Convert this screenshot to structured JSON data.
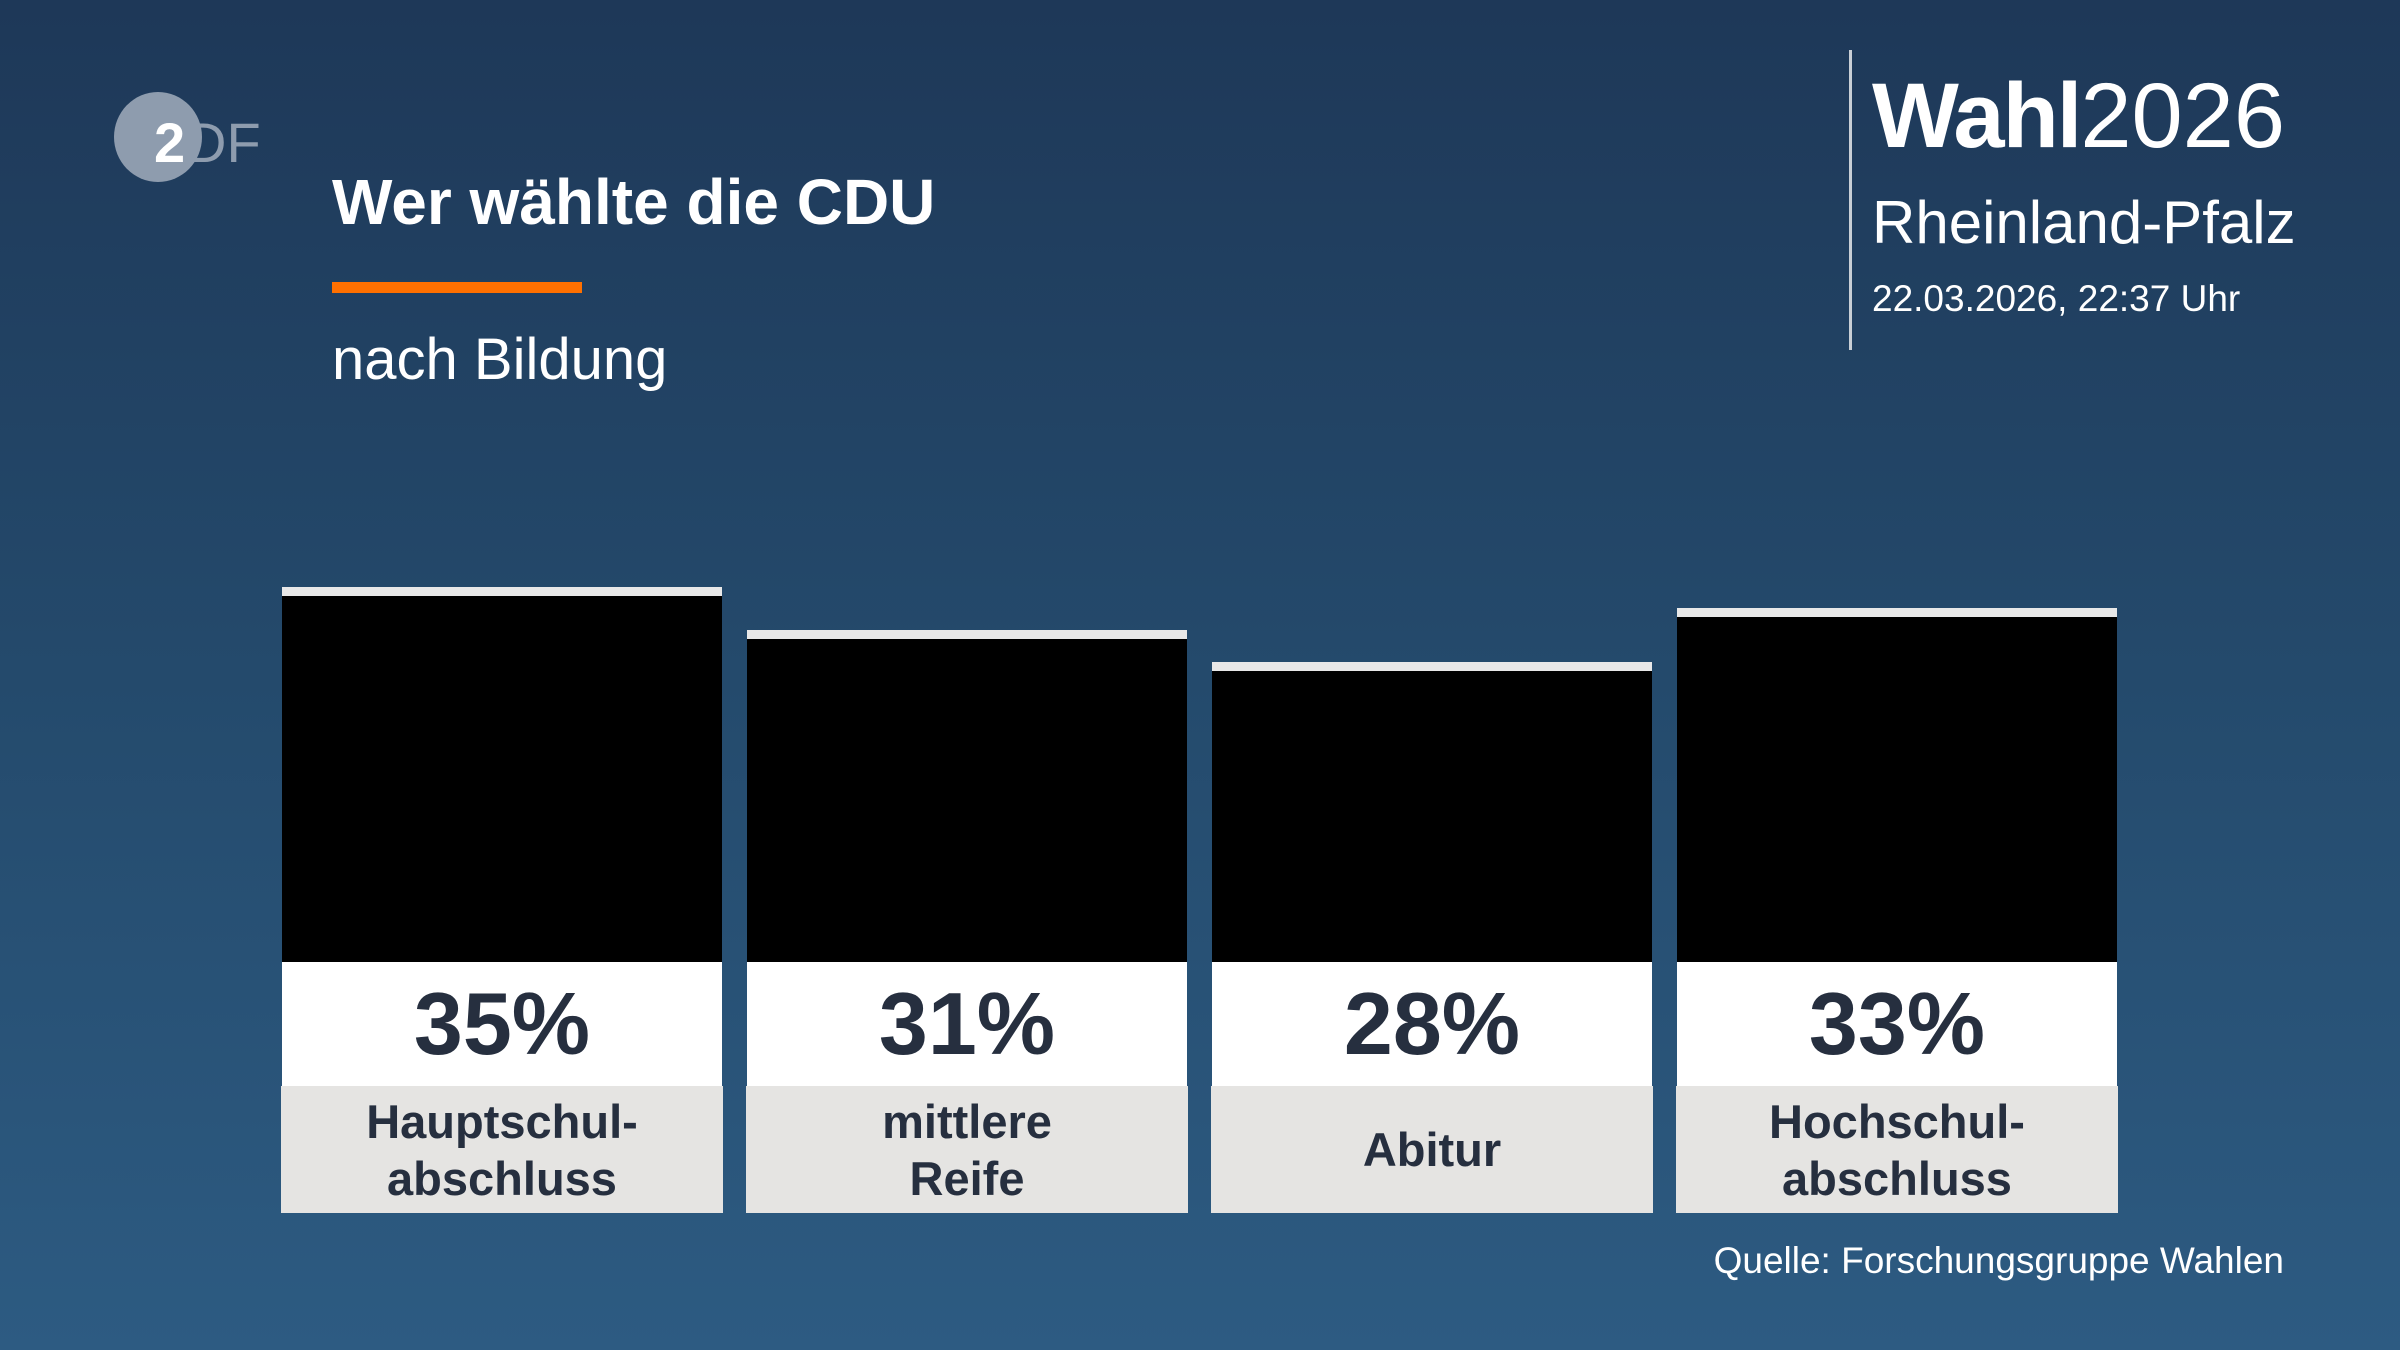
{
  "logo": {
    "text": "ZDF"
  },
  "header": {
    "title": "Wer wählte die CDU",
    "subtitle": "nach Bildung",
    "brand_bold": "Wahl",
    "brand_year": "2026",
    "region": "Rheinland-Pfalz",
    "timestamp": "22.03.2026, 22:37 Uhr"
  },
  "colors": {
    "accent": "#ff7000",
    "bar": "#000000",
    "label_bg": "#e5e4e2",
    "text_dark": "#262f3f"
  },
  "chart_data": {
    "type": "bar",
    "title": "Wer wählte die CDU",
    "subtitle": "nach Bildung",
    "categories": [
      "Hauptschul-\nabschluss",
      "mittlere\nReife",
      "Abitur",
      "Hochschul-\nabschluss"
    ],
    "values": [
      35,
      31,
      28,
      33
    ],
    "value_labels": [
      "35%",
      "31%",
      "28%",
      "33%"
    ],
    "unit": "%",
    "grid": false,
    "legend": "none"
  },
  "footer": {
    "source": "Quelle: Forschungsgruppe Wahlen"
  }
}
